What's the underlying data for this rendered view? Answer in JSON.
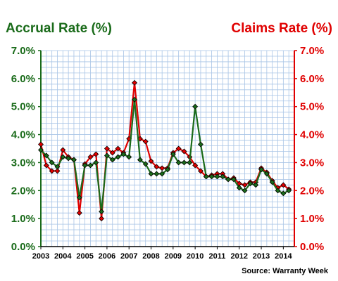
{
  "chart_data": {
    "type": "line",
    "title_left": "Accrual Rate (%)",
    "title_right": "Claims Rate (%)",
    "source": "Source: Warranty Week",
    "colors": {
      "accrual": "#1a6b1a",
      "claims": "#e00000",
      "axis_left": "#1a6b1a",
      "axis_right": "#e00000",
      "grid": "#a8c4e6"
    },
    "y_ticks": [
      "0.0%",
      "1.0%",
      "2.0%",
      "3.0%",
      "4.0%",
      "5.0%",
      "6.0%",
      "7.0%"
    ],
    "ylim": [
      0,
      7
    ],
    "x_tick_labels": [
      "2003",
      "2004",
      "2005",
      "2006",
      "2007",
      "2008",
      "2009",
      "2010",
      "2011",
      "2012",
      "2013",
      "2014"
    ],
    "xlim": [
      2003,
      2014.5
    ],
    "grid": true,
    "series": [
      {
        "name": "Accrual Rate (%)",
        "axis": "left",
        "x": [
          2003.0,
          2003.25,
          2003.5,
          2003.75,
          2004.0,
          2004.25,
          2004.5,
          2004.75,
          2005.0,
          2005.25,
          2005.5,
          2005.75,
          2006.0,
          2006.25,
          2006.5,
          2006.75,
          2007.0,
          2007.25,
          2007.5,
          2007.75,
          2008.0,
          2008.25,
          2008.5,
          2008.75,
          2009.0,
          2009.25,
          2009.5,
          2009.75,
          2010.0,
          2010.25,
          2010.5,
          2010.75,
          2011.0,
          2011.25,
          2011.5,
          2011.75,
          2012.0,
          2012.25,
          2012.5,
          2012.75,
          2013.0,
          2013.25,
          2013.5,
          2013.75,
          2014.0,
          2014.25
        ],
        "values": [
          3.45,
          3.25,
          3.0,
          2.85,
          3.2,
          3.15,
          3.1,
          1.75,
          2.9,
          2.9,
          3.0,
          1.25,
          3.25,
          3.1,
          3.2,
          3.3,
          3.2,
          5.25,
          3.1,
          2.95,
          2.6,
          2.6,
          2.6,
          2.75,
          3.3,
          3.0,
          3.0,
          3.0,
          5.0,
          3.65,
          2.5,
          2.5,
          2.5,
          2.5,
          2.4,
          2.4,
          2.1,
          2.0,
          2.25,
          2.2,
          2.75,
          2.6,
          2.3,
          2.0,
          1.9,
          2.0
        ]
      },
      {
        "name": "Claims Rate (%)",
        "axis": "right",
        "x": [
          2003.0,
          2003.25,
          2003.5,
          2003.75,
          2004.0,
          2004.25,
          2004.5,
          2004.75,
          2005.0,
          2005.25,
          2005.5,
          2005.75,
          2006.0,
          2006.25,
          2006.5,
          2006.75,
          2007.0,
          2007.25,
          2007.5,
          2007.75,
          2008.0,
          2008.25,
          2008.5,
          2008.75,
          2009.0,
          2009.25,
          2009.5,
          2009.75,
          2010.0,
          2010.25,
          2010.5,
          2010.75,
          2011.0,
          2011.25,
          2011.5,
          2011.75,
          2012.0,
          2012.25,
          2012.5,
          2012.75,
          2013.0,
          2013.25,
          2013.5,
          2013.75,
          2014.0,
          2014.25
        ],
        "values": [
          3.65,
          2.9,
          2.7,
          2.7,
          3.45,
          3.2,
          3.1,
          1.2,
          2.95,
          3.2,
          3.3,
          1.0,
          3.5,
          3.35,
          3.5,
          3.35,
          3.85,
          5.85,
          3.85,
          3.75,
          3.05,
          2.85,
          2.8,
          2.8,
          3.35,
          3.5,
          3.4,
          3.2,
          2.9,
          2.7,
          2.5,
          2.55,
          2.6,
          2.6,
          2.4,
          2.45,
          2.25,
          2.2,
          2.3,
          2.3,
          2.8,
          2.65,
          2.35,
          2.1,
          2.2,
          2.05
        ]
      }
    ]
  }
}
